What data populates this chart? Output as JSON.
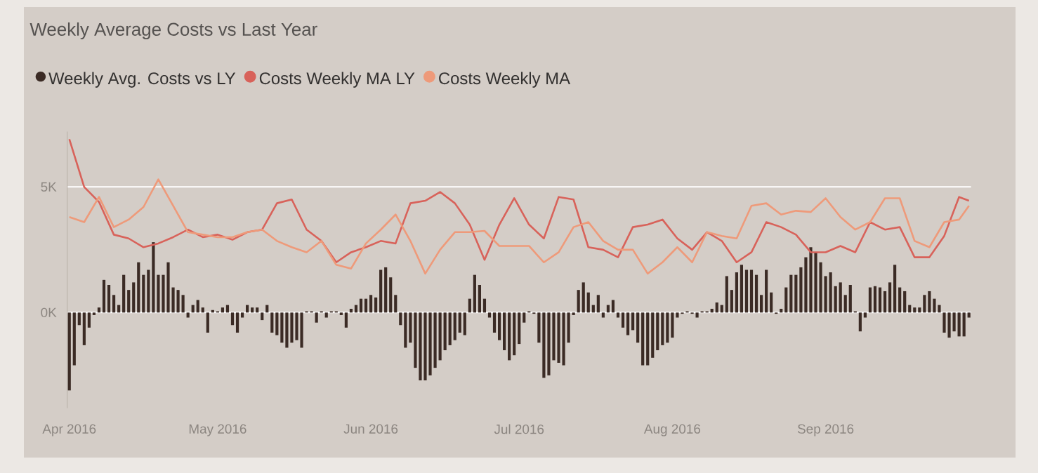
{
  "chart_data": {
    "type": "bar",
    "title": "Weekly Average Costs vs Last Year",
    "xlim": [
      "2016-03-31T14:00",
      "2016-09-30T10:00"
    ],
    "xticks": [
      {
        "value": "2016-04-01",
        "label": "Apr 2016"
      },
      {
        "value": "2016-05-01",
        "label": "May 2016"
      },
      {
        "value": "2016-06-01",
        "label": "Jun 2016"
      },
      {
        "value": "2016-07-01",
        "label": "Jul 2016"
      },
      {
        "value": "2016-08-01",
        "label": "Aug 2016"
      },
      {
        "value": "2016-09-01",
        "label": "Sep 2016"
      }
    ],
    "ylim": [
      -3800,
      7200
    ],
    "yticks": [
      {
        "value": 0,
        "label": "0K"
      },
      {
        "value": 5000,
        "label": "5K"
      }
    ],
    "grid": "y",
    "legend": "top left",
    "x": [
      "2016-04-01",
      "2016-04-02",
      "2016-04-03",
      "2016-04-04",
      "2016-04-05",
      "2016-04-06",
      "2016-04-07",
      "2016-04-08",
      "2016-04-09",
      "2016-04-10",
      "2016-04-11",
      "2016-04-12",
      "2016-04-13",
      "2016-04-14",
      "2016-04-15",
      "2016-04-16",
      "2016-04-17",
      "2016-04-18",
      "2016-04-19",
      "2016-04-20",
      "2016-04-21",
      "2016-04-22",
      "2016-04-23",
      "2016-04-24",
      "2016-04-25",
      "2016-04-26",
      "2016-04-27",
      "2016-04-28",
      "2016-04-29",
      "2016-04-30",
      "2016-05-01",
      "2016-05-02",
      "2016-05-03",
      "2016-05-04",
      "2016-05-05",
      "2016-05-06",
      "2016-05-07",
      "2016-05-08",
      "2016-05-09",
      "2016-05-10",
      "2016-05-11",
      "2016-05-12",
      "2016-05-13",
      "2016-05-14",
      "2016-05-15",
      "2016-05-16",
      "2016-05-17",
      "2016-05-18",
      "2016-05-19",
      "2016-05-20",
      "2016-05-21",
      "2016-05-22",
      "2016-05-23",
      "2016-05-24",
      "2016-05-25",
      "2016-05-26",
      "2016-05-27",
      "2016-05-28",
      "2016-05-29",
      "2016-05-30",
      "2016-05-31",
      "2016-06-01",
      "2016-06-02",
      "2016-06-03",
      "2016-06-04",
      "2016-06-05",
      "2016-06-06",
      "2016-06-07",
      "2016-06-08",
      "2016-06-09",
      "2016-06-10",
      "2016-06-11",
      "2016-06-12",
      "2016-06-13",
      "2016-06-14",
      "2016-06-15",
      "2016-06-16",
      "2016-06-17",
      "2016-06-18",
      "2016-06-19",
      "2016-06-20",
      "2016-06-21",
      "2016-06-22",
      "2016-06-23",
      "2016-06-24",
      "2016-06-25",
      "2016-06-26",
      "2016-06-27",
      "2016-06-28",
      "2016-06-29",
      "2016-06-30",
      "2016-07-01",
      "2016-07-02",
      "2016-07-03",
      "2016-07-04",
      "2016-07-05",
      "2016-07-06",
      "2016-07-07",
      "2016-07-08",
      "2016-07-09",
      "2016-07-10",
      "2016-07-11",
      "2016-07-12",
      "2016-07-13",
      "2016-07-14",
      "2016-07-15",
      "2016-07-16",
      "2016-07-17",
      "2016-07-18",
      "2016-07-19",
      "2016-07-20",
      "2016-07-21",
      "2016-07-22",
      "2016-07-23",
      "2016-07-24",
      "2016-07-25",
      "2016-07-26",
      "2016-07-27",
      "2016-07-28",
      "2016-07-29",
      "2016-07-30",
      "2016-07-31",
      "2016-08-01",
      "2016-08-02",
      "2016-08-03",
      "2016-08-04",
      "2016-08-05",
      "2016-08-06",
      "2016-08-07",
      "2016-08-08",
      "2016-08-09",
      "2016-08-10",
      "2016-08-11",
      "2016-08-12",
      "2016-08-13",
      "2016-08-14",
      "2016-08-15",
      "2016-08-16",
      "2016-08-17",
      "2016-08-18",
      "2016-08-19",
      "2016-08-20",
      "2016-08-21",
      "2016-08-22",
      "2016-08-23",
      "2016-08-24",
      "2016-08-25",
      "2016-08-26",
      "2016-08-27",
      "2016-08-28",
      "2016-08-29",
      "2016-08-30",
      "2016-08-31",
      "2016-09-01",
      "2016-09-02",
      "2016-09-03",
      "2016-09-04",
      "2016-09-05",
      "2016-09-06",
      "2016-09-07",
      "2016-09-08",
      "2016-09-09",
      "2016-09-10",
      "2016-09-11",
      "2016-09-12",
      "2016-09-13",
      "2016-09-14",
      "2016-09-15",
      "2016-09-16",
      "2016-09-17",
      "2016-09-18",
      "2016-09-19",
      "2016-09-20",
      "2016-09-21",
      "2016-09-22",
      "2016-09-23",
      "2016-09-24",
      "2016-09-25",
      "2016-09-26",
      "2016-09-27",
      "2016-09-28",
      "2016-09-29",
      "2016-09-30"
    ],
    "series": [
      {
        "name": "Weekly Avg. Costs vs LY",
        "type": "bar",
        "color": "#3b2b25",
        "values": [
          -3100,
          -2100,
          -500,
          -1300,
          -600,
          -100,
          200,
          1300,
          1100,
          700,
          300,
          1500,
          900,
          1200,
          2000,
          1500,
          1700,
          2800,
          1500,
          1500,
          2000,
          1000,
          900,
          700,
          -200,
          300,
          500,
          200,
          -800,
          100,
          50,
          200,
          300,
          -500,
          -800,
          -200,
          300,
          200,
          200,
          -300,
          300,
          -800,
          -900,
          -1200,
          -1400,
          -1200,
          -1100,
          -1400,
          50,
          50,
          -400,
          50,
          -200,
          50,
          50,
          -100,
          -600,
          150,
          300,
          550,
          550,
          700,
          600,
          1700,
          1800,
          1400,
          700,
          -500,
          -1400,
          -1200,
          -2200,
          -2700,
          -2700,
          -2500,
          -2200,
          -1900,
          -1500,
          -1300,
          -1100,
          -800,
          -900,
          550,
          1500,
          1100,
          550,
          -200,
          -800,
          -1100,
          -1500,
          -1900,
          -1700,
          -1250,
          -400,
          50,
          -50,
          -1200,
          -2600,
          -2500,
          -1900,
          -2000,
          -2100,
          -1200,
          -100,
          900,
          1200,
          800,
          300,
          700,
          -200,
          300,
          500,
          -200,
          -600,
          -900,
          -700,
          -1200,
          -2100,
          -2100,
          -1800,
          -1500,
          -1300,
          -1200,
          -1000,
          -200,
          -50,
          50,
          -50,
          -200,
          50,
          50,
          150,
          400,
          300,
          1450,
          900,
          1600,
          1900,
          1700,
          1700,
          1500,
          700,
          1700,
          800,
          -50,
          150,
          1000,
          1500,
          1500,
          1800,
          2200,
          2600,
          2400,
          2000,
          1450,
          1600,
          1050,
          1200,
          700,
          1100,
          50,
          -750,
          -200,
          1000,
          1050,
          1000,
          850,
          1200,
          1900,
          1000,
          850,
          300,
          200,
          200,
          700,
          850,
          550,
          300,
          -800,
          -1000,
          -750,
          -950,
          -950,
          -200
        ]
      },
      {
        "name": "Costs Weekly MA LY",
        "type": "line",
        "color": "#d8625a",
        "x": [
          "2016-04-01",
          "2016-04-04",
          "2016-04-07",
          "2016-04-10",
          "2016-04-13",
          "2016-04-16",
          "2016-04-19",
          "2016-04-22",
          "2016-04-25",
          "2016-04-28",
          "2016-05-01",
          "2016-05-04",
          "2016-05-07",
          "2016-05-10",
          "2016-05-13",
          "2016-05-16",
          "2016-05-19",
          "2016-05-22",
          "2016-05-25",
          "2016-05-28",
          "2016-05-31",
          "2016-06-03",
          "2016-06-06",
          "2016-06-09",
          "2016-06-12",
          "2016-06-15",
          "2016-06-18",
          "2016-06-21",
          "2016-06-24",
          "2016-06-27",
          "2016-06-30",
          "2016-07-03",
          "2016-07-06",
          "2016-07-09",
          "2016-07-12",
          "2016-07-15",
          "2016-07-18",
          "2016-07-21",
          "2016-07-24",
          "2016-07-27",
          "2016-07-30",
          "2016-08-02",
          "2016-08-05",
          "2016-08-08",
          "2016-08-11",
          "2016-08-14",
          "2016-08-17",
          "2016-08-20",
          "2016-08-23",
          "2016-08-26",
          "2016-08-29",
          "2016-09-01",
          "2016-09-04",
          "2016-09-07",
          "2016-09-10",
          "2016-09-13",
          "2016-09-16",
          "2016-09-19",
          "2016-09-22",
          "2016-09-25",
          "2016-09-28",
          "2016-09-30"
        ],
        "values": [
          6900,
          5000,
          4400,
          3100,
          2950,
          2600,
          2750,
          3000,
          3300,
          3000,
          3100,
          2900,
          3200,
          3300,
          4350,
          4500,
          3300,
          2850,
          2000,
          2400,
          2600,
          2850,
          2750,
          4350,
          4450,
          4800,
          4350,
          3500,
          2100,
          3500,
          4550,
          3500,
          2950,
          4600,
          4500,
          2600,
          2500,
          2200,
          3400,
          3500,
          3700,
          2950,
          2500,
          3200,
          2850,
          2000,
          2400,
          3600,
          3400,
          3100,
          2400,
          2400,
          2650,
          2400,
          3600,
          3300,
          3400,
          2200,
          2200,
          3050,
          4600,
          4450
        ]
      },
      {
        "name": "Costs Weekly MA",
        "type": "line",
        "color": "#ee9a7a",
        "x": [
          "2016-04-01",
          "2016-04-04",
          "2016-04-07",
          "2016-04-10",
          "2016-04-13",
          "2016-04-16",
          "2016-04-19",
          "2016-04-22",
          "2016-04-25",
          "2016-04-28",
          "2016-05-01",
          "2016-05-04",
          "2016-05-07",
          "2016-05-10",
          "2016-05-13",
          "2016-05-16",
          "2016-05-19",
          "2016-05-22",
          "2016-05-25",
          "2016-05-28",
          "2016-05-31",
          "2016-06-03",
          "2016-06-06",
          "2016-06-09",
          "2016-06-12",
          "2016-06-15",
          "2016-06-18",
          "2016-06-21",
          "2016-06-24",
          "2016-06-27",
          "2016-06-30",
          "2016-07-03",
          "2016-07-06",
          "2016-07-09",
          "2016-07-12",
          "2016-07-15",
          "2016-07-18",
          "2016-07-21",
          "2016-07-24",
          "2016-07-27",
          "2016-07-30",
          "2016-08-02",
          "2016-08-05",
          "2016-08-08",
          "2016-08-11",
          "2016-08-14",
          "2016-08-17",
          "2016-08-20",
          "2016-08-23",
          "2016-08-26",
          "2016-08-29",
          "2016-09-01",
          "2016-09-04",
          "2016-09-07",
          "2016-09-10",
          "2016-09-13",
          "2016-09-16",
          "2016-09-19",
          "2016-09-22",
          "2016-09-25",
          "2016-09-28",
          "2016-09-30"
        ],
        "values": [
          3800,
          3600,
          4600,
          3400,
          3700,
          4200,
          5300,
          4250,
          3200,
          3100,
          3000,
          3000,
          3200,
          3300,
          2850,
          2600,
          2400,
          2850,
          1900,
          1750,
          2750,
          3300,
          3900,
          2850,
          1550,
          2500,
          3200,
          3200,
          3250,
          2650,
          2650,
          2650,
          2000,
          2400,
          3400,
          3600,
          2850,
          2500,
          2500,
          1550,
          2000,
          2600,
          2000,
          3200,
          3050,
          2950,
          4250,
          4350,
          3900,
          4050,
          4000,
          4550,
          3800,
          3300,
          3600,
          4550,
          4550,
          2850,
          2600,
          3600,
          3700,
          4250
        ]
      }
    ]
  }
}
